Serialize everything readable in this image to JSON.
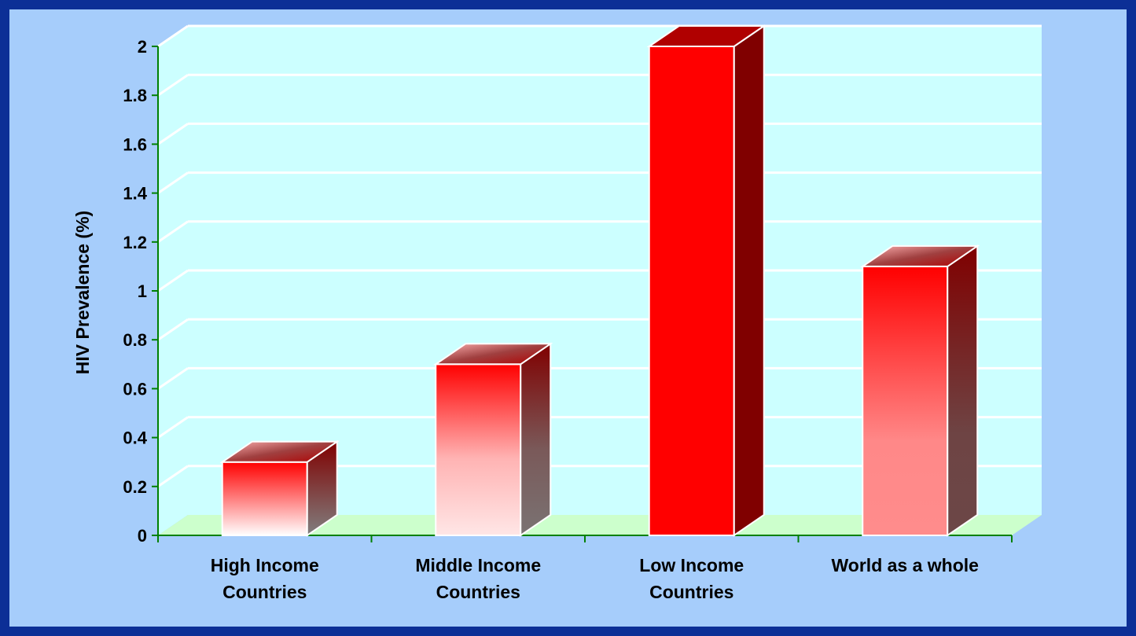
{
  "chart_data": {
    "type": "bar",
    "categories": [
      [
        "High Income",
        "Countries"
      ],
      [
        "Middle Income",
        "Countries"
      ],
      [
        "Low Income",
        "Countries"
      ],
      [
        "World as a whole"
      ]
    ],
    "values": [
      0.3,
      0.7,
      2.0,
      1.1
    ],
    "ylabel": "HIV Prevalence (%)",
    "xlabel": "",
    "ylim": [
      0,
      2
    ],
    "yticks": [
      "0",
      "0.2",
      "0.4",
      "0.6",
      "0.8",
      "1",
      "1.2",
      "1.4",
      "1.6",
      "1.8",
      "2"
    ],
    "grid": true,
    "legend": "none",
    "style": "3d-column",
    "colors": {
      "page_border": "#0c2f96",
      "slide_background": "#a6cdfb",
      "plot_wall": "#ccffff",
      "plot_floor": "#ccffcc",
      "gridline": "#ffffff",
      "axis": "#008000",
      "bar": "#ff0000",
      "bar_light": "#ffffff",
      "bar_side": "#800000"
    }
  }
}
